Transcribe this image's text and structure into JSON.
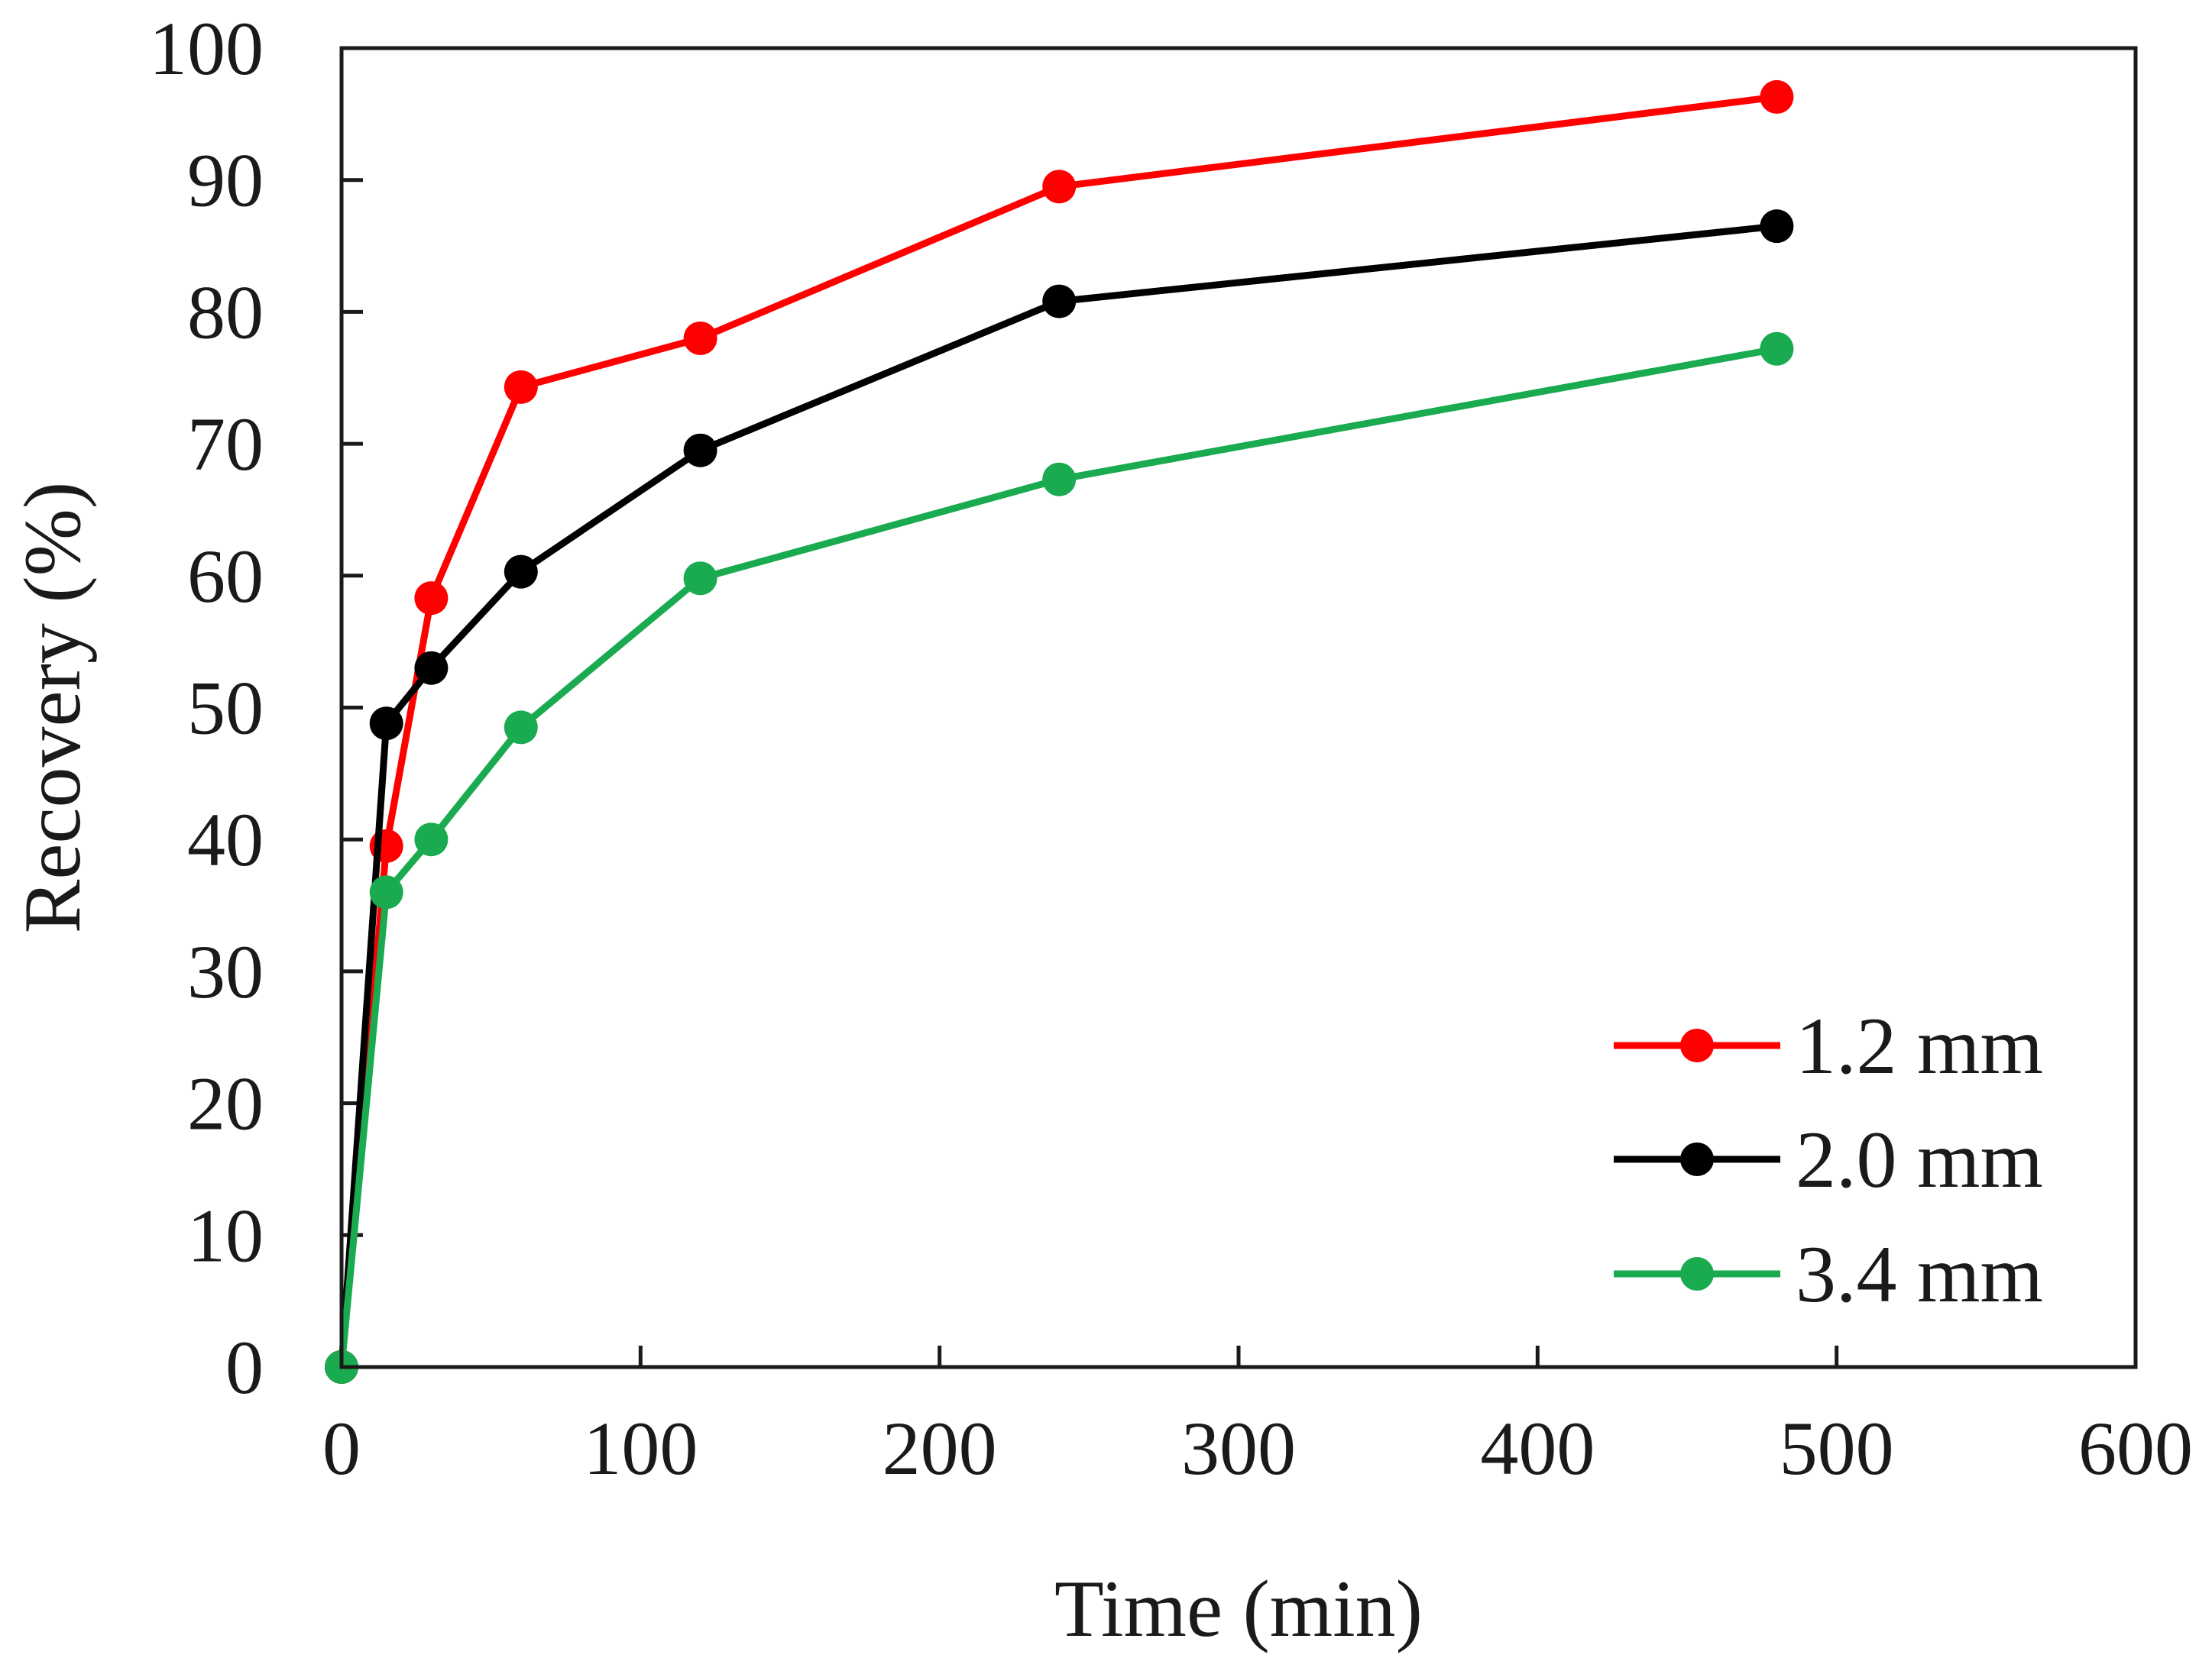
{
  "chart_data": {
    "type": "line",
    "title": "",
    "xlabel": "Time (min)",
    "ylabel": "Recovery (%)",
    "xlim": [
      0,
      600
    ],
    "ylim": [
      0,
      100
    ],
    "xticks": [
      0,
      100,
      200,
      300,
      400,
      500,
      600
    ],
    "yticks": [
      0,
      10,
      20,
      30,
      40,
      50,
      60,
      70,
      80,
      90,
      100
    ],
    "x": [
      0,
      15,
      30,
      60,
      120,
      240,
      480
    ],
    "legend_position": "bottom-right",
    "grid": false,
    "series": [
      {
        "name": "1.2 mm",
        "color": "#ff0000",
        "values": [
          0,
          39.5,
          58.3,
          74.3,
          78,
          89.5,
          96.3
        ]
      },
      {
        "name": "2.0 mm",
        "color": "#000000",
        "values": [
          0,
          48.8,
          53,
          60.3,
          69.5,
          80.8,
          86.5
        ]
      },
      {
        "name": "3.4 mm",
        "color": "#1aaa4f",
        "values": [
          0,
          36,
          40,
          48.5,
          59.8,
          67.3,
          77.2
        ]
      }
    ]
  }
}
